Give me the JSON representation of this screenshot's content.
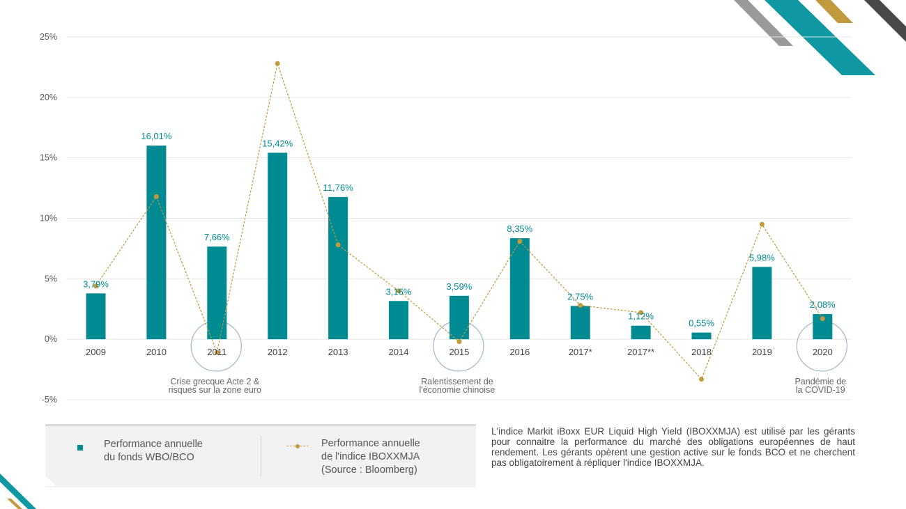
{
  "chart_data": {
    "type": "bar",
    "categories": [
      "2009",
      "2010",
      "2011",
      "2012",
      "2013",
      "2014",
      "2015",
      "2016",
      "2017*",
      "2017**",
      "2018",
      "2019",
      "2020"
    ],
    "series": [
      {
        "name": "Performance annuelle du fonds WBO/BCO",
        "type": "bar",
        "values": [
          3.79,
          16.01,
          7.66,
          15.42,
          11.76,
          3.16,
          3.59,
          8.35,
          2.75,
          1.12,
          0.55,
          5.98,
          2.08
        ],
        "labels": [
          "3,79%",
          "16,01%",
          "7,66%",
          "15,42%",
          "11,76%",
          "3,16%",
          "3,59%",
          "8,35%",
          "2,75%",
          "1,12%",
          "0,55%",
          "5,98%",
          "2,08%"
        ]
      },
      {
        "name": "Performance annuelle de l'indice IBOXXMJA (Source : Bloomberg)",
        "type": "line",
        "values": [
          4.4,
          11.8,
          -1.1,
          22.8,
          7.8,
          4.0,
          -0.2,
          8.1,
          2.8,
          2.2,
          -3.3,
          9.5,
          1.7
        ]
      }
    ],
    "y_ticks": [
      "25%",
      "20%",
      "15%",
      "10%",
      "5%",
      "0%",
      "-5%"
    ],
    "y_tick_values": [
      25,
      20,
      15,
      10,
      5,
      0,
      -5
    ],
    "ylim": [
      -5,
      25
    ],
    "annotations": [
      {
        "category": "2011",
        "lines": [
          "Crise grecque Acte 2 &",
          "risques sur la zone euro"
        ]
      },
      {
        "category": "2015",
        "lines": [
          "Ralentissement de",
          "l'économie chinoise"
        ]
      },
      {
        "category": "2020",
        "lines": [
          "Pandémie de",
          "la COVID-19"
        ]
      }
    ],
    "colors": {
      "bar": "#008b93",
      "line": "#c09a3c",
      "circle": "#a3b8c6",
      "label": "#008b93"
    }
  },
  "legend": {
    "fund_line1": "Performance annuelle",
    "fund_line2": "du fonds WBO/BCO",
    "index_line1": "Performance annuelle",
    "index_line2": "de l'indice IBOXXMJA",
    "index_line3": "(Source : Bloomberg)"
  },
  "note": "L'indice Markit iBoxx EUR Liquid High Yield (IBOXXMJA) est utilisé par les gérants pour connaitre la performance du marché des obligations européennes de haut rendement. Les gérants opèrent une gestion active sur le fonds BCO et ne cherchent pas obligatoirement à répliquer l'indice IBOXXMJA."
}
